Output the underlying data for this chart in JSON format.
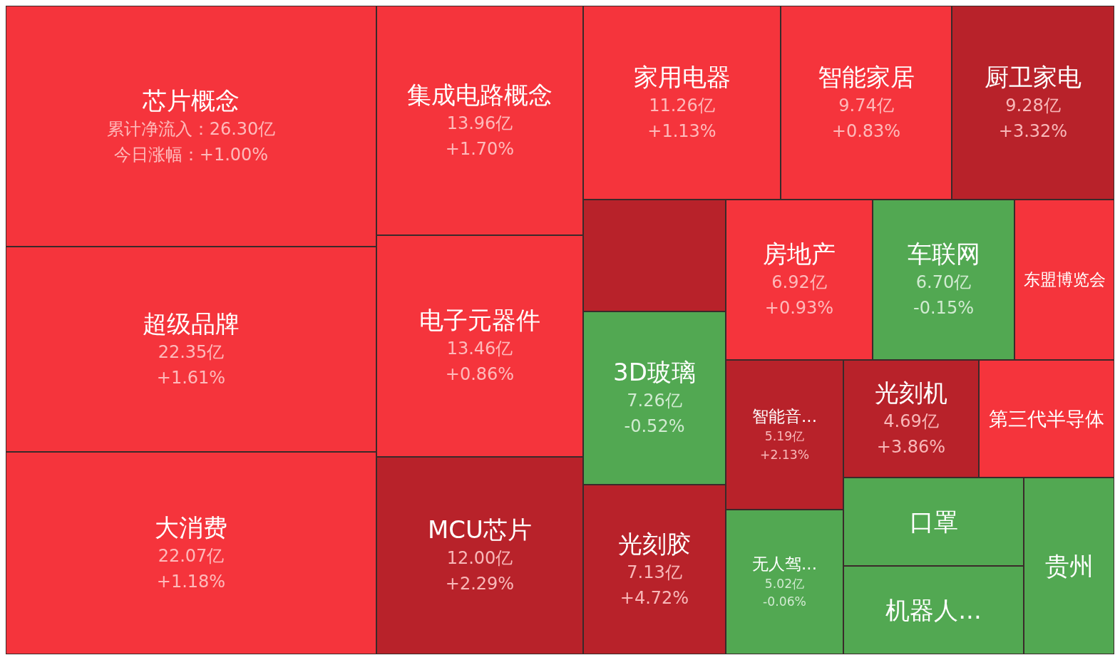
{
  "chart_data": {
    "type": "other",
    "categories": [
      "芯片概念",
      "超级品牌",
      "大消费",
      "集成电路概念",
      "电子元器件",
      "MCU芯片",
      "家用电器",
      "智能家居",
      "厨卫家电",
      null,
      "3D玻璃",
      "光刻胶",
      "房地产",
      "车联网",
      "东盟博览会",
      "智能音...",
      "无人驾...",
      "光刻机",
      "第三代半导体",
      "口罩",
      "机器人...",
      "贵州"
    ],
    "values": [
      26.3,
      22.35,
      22.07,
      13.96,
      13.46,
      12.0,
      11.26,
      9.74,
      9.28,
      null,
      7.26,
      7.13,
      6.92,
      6.7,
      null,
      5.19,
      5.02,
      4.69,
      null,
      null,
      null,
      null
    ],
    "value_labels": [
      "累计净流入：26.30亿",
      "22.35亿",
      "22.07亿",
      "13.96亿",
      "13.46亿",
      "12.00亿",
      "11.26亿",
      "9.74亿",
      "9.28亿",
      null,
      "7.26亿",
      "7.13亿",
      "6.92亿",
      "6.70亿",
      null,
      "5.19亿",
      "5.02亿",
      "4.69亿",
      null,
      null,
      null,
      null
    ],
    "series": [
      {
        "values": [
          1.0,
          1.61,
          1.18,
          1.7,
          0.86,
          2.29,
          1.13,
          0.83,
          3.32,
          null,
          -0.52,
          4.72,
          0.93,
          -0.15,
          null,
          2.13,
          -0.06,
          3.86,
          null,
          null,
          null,
          null
        ],
        "value_labels": [
          "今日涨幅：+1.00%",
          "+1.61%",
          "+1.18%",
          "+1.70%",
          "+0.86%",
          "+2.29%",
          "+1.13%",
          "+0.83%",
          "+3.32%",
          null,
          "-0.52%",
          "+4.72%",
          "+0.93%",
          "-0.15%",
          null,
          "+2.13%",
          "-0.06%",
          "+3.86%",
          null,
          null,
          null,
          null
        ]
      }
    ],
    "colors": [
      "#f5343c",
      "#f5343c",
      "#f5343c",
      "#f5343c",
      "#f5343c",
      "#b8222a",
      "#f5343c",
      "#f5343c",
      "#b8222a",
      "#b8222a",
      "#52a852",
      "#b8222a",
      "#f5343c",
      "#52a852",
      "#f5343c",
      "#b8222a",
      "#52a852",
      "#b8222a",
      "#f5343c",
      "#52a852",
      "#52a852",
      "#52a852"
    ]
  }
}
